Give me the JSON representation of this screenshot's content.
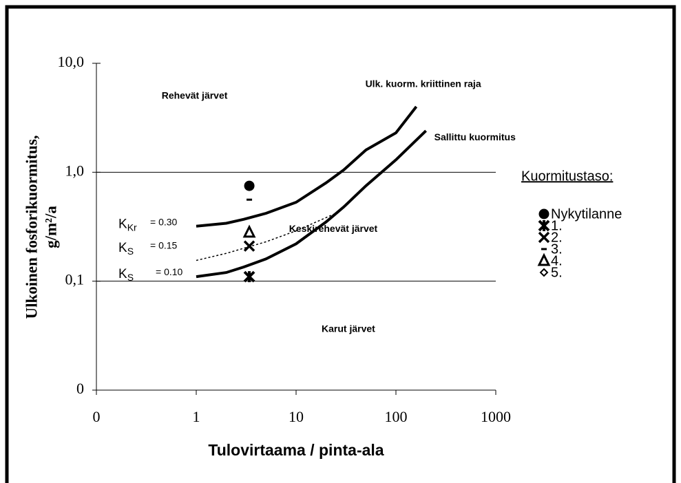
{
  "chart_data": {
    "type": "line",
    "log_x": true,
    "log_y": true,
    "xlabel": "Tulovirtaama / pinta-ala",
    "ylabel": [
      "Ulkoinen fosforikuormitus,",
      "g/m²/a"
    ],
    "xlim": [
      0.1,
      1000
    ],
    "xticks": [
      {
        "value": 0.1,
        "label": "0"
      },
      1,
      10,
      100,
      1000
    ],
    "ylim": [
      0.01,
      10
    ],
    "yticks": [
      {
        "value": 0.01,
        "label": "0"
      },
      {
        "value": 0.1,
        "label": "0,1"
      },
      {
        "value": 1,
        "label": "1,0"
      },
      {
        "value": 10,
        "label": "10,0"
      }
    ],
    "grid": true,
    "curves": [
      {
        "label": "Ulk. kuorm. kriittinen raja",
        "dashed": false,
        "x": [
          1,
          2,
          3,
          5,
          10,
          20,
          30,
          50,
          100,
          160
        ],
        "values": [
          0.32,
          0.34,
          0.37,
          0.42,
          0.53,
          0.8,
          1.05,
          1.6,
          2.3,
          4.0
        ]
      },
      {
        "label": "Sallittu kuormitus",
        "dashed": false,
        "x": [
          1,
          2,
          3,
          5,
          10,
          20,
          30,
          50,
          100,
          200
        ],
        "values": [
          0.11,
          0.12,
          0.135,
          0.16,
          0.22,
          0.35,
          0.48,
          0.75,
          1.3,
          2.4
        ]
      },
      {
        "dashed": true,
        "x": [
          1,
          2,
          5,
          10,
          25
        ],
        "values": [
          0.155,
          0.18,
          0.23,
          0.29,
          0.42
        ]
      }
    ],
    "k_labels": [
      {
        "symbol": "K",
        "sub": "Kr",
        "text": "= 0.30",
        "y": 0.33
      },
      {
        "symbol": "K",
        "sub": "S",
        "text": "= 0.15",
        "y": 0.2
      },
      {
        "symbol": "K",
        "sub": "S",
        "text": "= 0.10",
        "y": 0.115
      }
    ],
    "annotations": [
      {
        "text": "Rehevät järvet",
        "x": 0.45,
        "y": 5.0
      },
      {
        "text": "Keskirehevät järvet",
        "x": 8.5,
        "y": 0.3
      },
      {
        "text": "Karut järvet",
        "x": 18,
        "y": 0.036
      }
    ],
    "legend_title": "Kuormitustaso:",
    "legend": "right",
    "series": [
      {
        "name": "Nykytilanne",
        "marker": "circle",
        "color": "#000000",
        "x": [
          3.4
        ],
        "values": [
          0.75
        ]
      },
      {
        "name": "1.",
        "marker": "star",
        "color": "#000000",
        "x": [
          3.4
        ],
        "values": [
          0.11
        ]
      },
      {
        "name": "2.",
        "marker": "x",
        "color": "#000000",
        "x": [
          3.4
        ],
        "values": [
          0.21
        ]
      },
      {
        "name": "3.",
        "marker": "dash",
        "color": "#000000",
        "x": [
          3.4
        ],
        "values": [
          0.56
        ]
      },
      {
        "name": "4.",
        "marker": "triangle",
        "color": "#000000",
        "x": [
          3.4
        ],
        "values": [
          0.28
        ]
      },
      {
        "name": "5.",
        "marker": "diamond",
        "color": "#000000",
        "x": [
          3.4
        ],
        "values": [
          null
        ]
      }
    ]
  }
}
